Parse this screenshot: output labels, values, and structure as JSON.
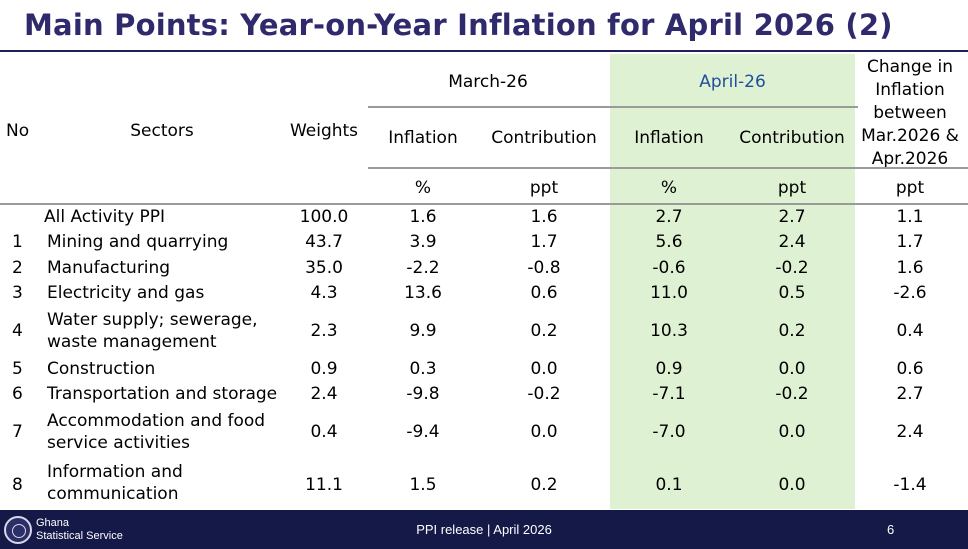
{
  "title": "Main Points: Year-on-Year Inflation for April 2026 (2)",
  "headers": {
    "no": "No",
    "sectors": "Sectors",
    "weights": "Weights",
    "march": "March-26",
    "april": "April-26",
    "change": "Change in Inflation between Mar.2026 & Apr.2026",
    "inflation": "Inflation",
    "contribution": "Contribution",
    "unit_pct": "%",
    "unit_ppt": "ppt"
  },
  "rows": [
    {
      "no": "",
      "sector": "All Activity PPI",
      "weight": "100.0",
      "mar_inf": "1.6",
      "mar_con": "1.6",
      "apr_inf": "2.7",
      "apr_con": "2.7",
      "change": "1.1"
    },
    {
      "no": "1",
      "sector": "Mining and quarrying",
      "weight": "43.7",
      "mar_inf": "3.9",
      "mar_con": "1.7",
      "apr_inf": "5.6",
      "apr_con": "2.4",
      "change": "1.7"
    },
    {
      "no": "2",
      "sector": "Manufacturing",
      "weight": "35.0",
      "mar_inf": "-2.2",
      "mar_con": "-0.8",
      "apr_inf": "-0.6",
      "apr_con": "-0.2",
      "change": "1.6"
    },
    {
      "no": "3",
      "sector": "Electricity and gas",
      "weight": "4.3",
      "mar_inf": "13.6",
      "mar_con": "0.6",
      "apr_inf": "11.0",
      "apr_con": "0.5",
      "change": "-2.6"
    },
    {
      "no": "4",
      "sector": "Water supply; sewerage, waste management",
      "weight": "2.3",
      "mar_inf": "9.9",
      "mar_con": "0.2",
      "apr_inf": "10.3",
      "apr_con": "0.2",
      "change": "0.4"
    },
    {
      "no": "5",
      "sector": "Construction",
      "weight": "0.9",
      "mar_inf": "0.3",
      "mar_con": "0.0",
      "apr_inf": "0.9",
      "apr_con": "0.0",
      "change": "0.6"
    },
    {
      "no": "6",
      "sector": "Transportation and storage",
      "weight": "2.4",
      "mar_inf": "-9.8",
      "mar_con": "-0.2",
      "apr_inf": "-7.1",
      "apr_con": "-0.2",
      "change": "2.7"
    },
    {
      "no": "7",
      "sector": "Accommodation and food service activities",
      "weight": "0.4",
      "mar_inf": "-9.4",
      "mar_con": "0.0",
      "apr_inf": "-7.0",
      "apr_con": "0.0",
      "change": "2.4"
    },
    {
      "no": "8",
      "sector": "Information and communication",
      "weight": "11.1",
      "mar_inf": "1.5",
      "mar_con": "0.2",
      "apr_inf": "0.1",
      "apr_con": "0.0",
      "change": "-1.4"
    }
  ],
  "footer": {
    "org_line1": "Ghana",
    "org_line2": "Statistical Service",
    "release": "PPI release | April 2026",
    "page": "6"
  },
  "colors": {
    "title": "#2e2a6b",
    "april_header": "#1f4e9c",
    "april_band": "#dff1d3",
    "footer_bg": "#141947"
  }
}
